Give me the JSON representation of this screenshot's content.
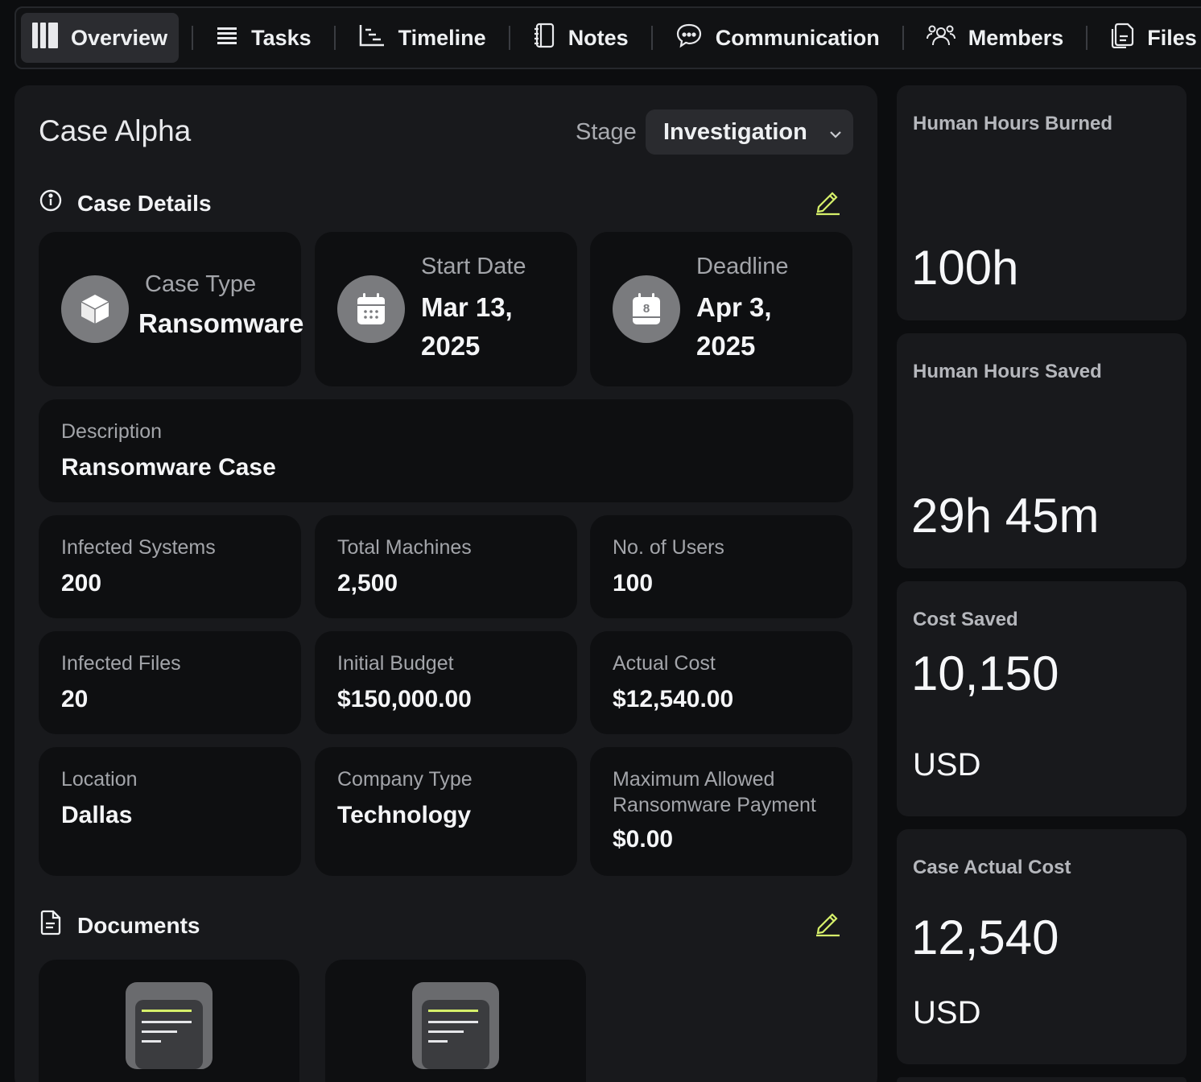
{
  "nav": {
    "tabs": [
      {
        "label": "Overview",
        "icon": "overview-icon",
        "active": true
      },
      {
        "label": "Tasks",
        "icon": "tasks-icon"
      },
      {
        "label": "Timeline",
        "icon": "timeline-icon"
      },
      {
        "label": "Notes",
        "icon": "notes-icon"
      },
      {
        "label": "Communication",
        "icon": "chat-icon"
      },
      {
        "label": "Members",
        "icon": "members-icon"
      },
      {
        "label": "Files",
        "icon": "files-icon"
      }
    ]
  },
  "case": {
    "title": "Case Alpha",
    "stage_label": "Stage",
    "stage_value": "Investigation"
  },
  "details": {
    "heading": "Case Details",
    "case_type": {
      "label": "Case Type",
      "value": "Ransomware",
      "icon": "cube-icon"
    },
    "start_date": {
      "label": "Start Date",
      "line1": "Mar 13,",
      "line2": "2025",
      "icon": "calendar-icon"
    },
    "deadline": {
      "label": "Deadline",
      "line1": "Apr 3,",
      "line2": "2025",
      "icon": "calendar-8-icon",
      "badge": "8"
    },
    "description": {
      "label": "Description",
      "value": "Ransomware Case"
    },
    "fields": [
      {
        "label": "Infected Systems",
        "value": "200"
      },
      {
        "label": "Total Machines",
        "value": "2,500"
      },
      {
        "label": "No. of Users",
        "value": "100"
      },
      {
        "label": "Infected Files",
        "value": "20"
      },
      {
        "label": "Initial Budget",
        "value": "$150,000.00"
      },
      {
        "label": "Actual Cost",
        "value": "$12,540.00"
      },
      {
        "label": "Location",
        "value": "Dallas"
      },
      {
        "label": "Company Type",
        "value": "Technology"
      },
      {
        "label": "Maximum Allowed Ransomware Payment",
        "value": "$0.00"
      }
    ]
  },
  "documents": {
    "heading": "Documents"
  },
  "stats": [
    {
      "label": "Human Hours Burned",
      "value": "100h",
      "unit": ""
    },
    {
      "label": "Human Hours Saved",
      "value": "29h 45m",
      "unit": ""
    },
    {
      "label": "Cost Saved",
      "value": "10,150",
      "unit": "USD"
    },
    {
      "label": "Case Actual Cost",
      "value": "12,540",
      "unit": "USD"
    }
  ],
  "colors": {
    "accent": "#d6f06a",
    "background": "#0c0d0f",
    "panel": "#18191c",
    "card": "#0e0f11"
  }
}
